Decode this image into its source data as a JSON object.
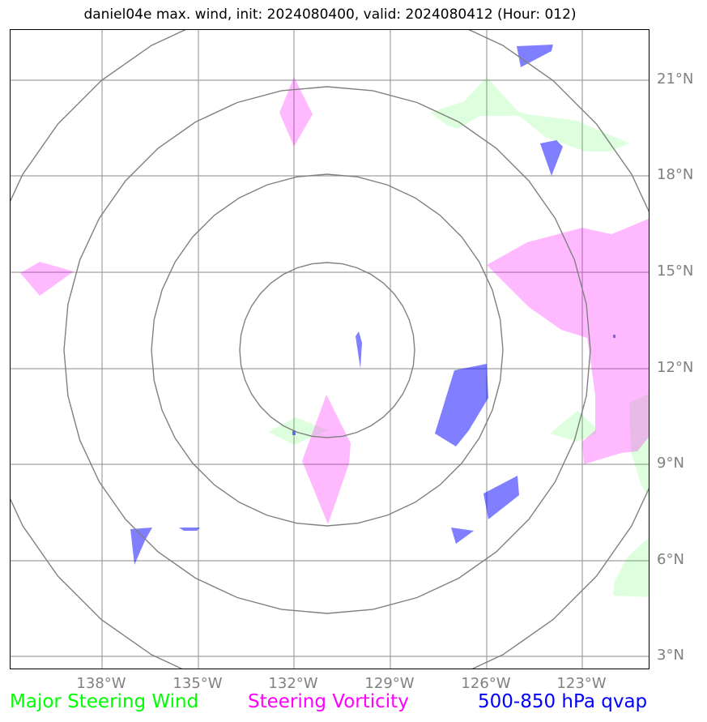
{
  "title": "daniel04e max. wind, init: 2024080400, valid: 2024080412 (Hour: 012)",
  "map": {
    "lat_labels": [
      "21°N",
      "18°N",
      "15°N",
      "12°N",
      "9°N",
      "6°N",
      "3°N"
    ],
    "lon_labels": [
      "138°W",
      "135°W",
      "132°W",
      "129°W",
      "126°W",
      "123°W"
    ],
    "colors": {
      "steering_wind": "#00ff00",
      "steering_vorticity": "#ff00ff",
      "qvap": "#0000ff",
      "range_rings": "#808080",
      "gridlines": "#a0a0a0"
    }
  },
  "legend": {
    "steering_wind": "Major Steering Wind",
    "steering_vorticity": "Steering Vorticity",
    "qvap": "500-850 hPa qvap"
  }
}
